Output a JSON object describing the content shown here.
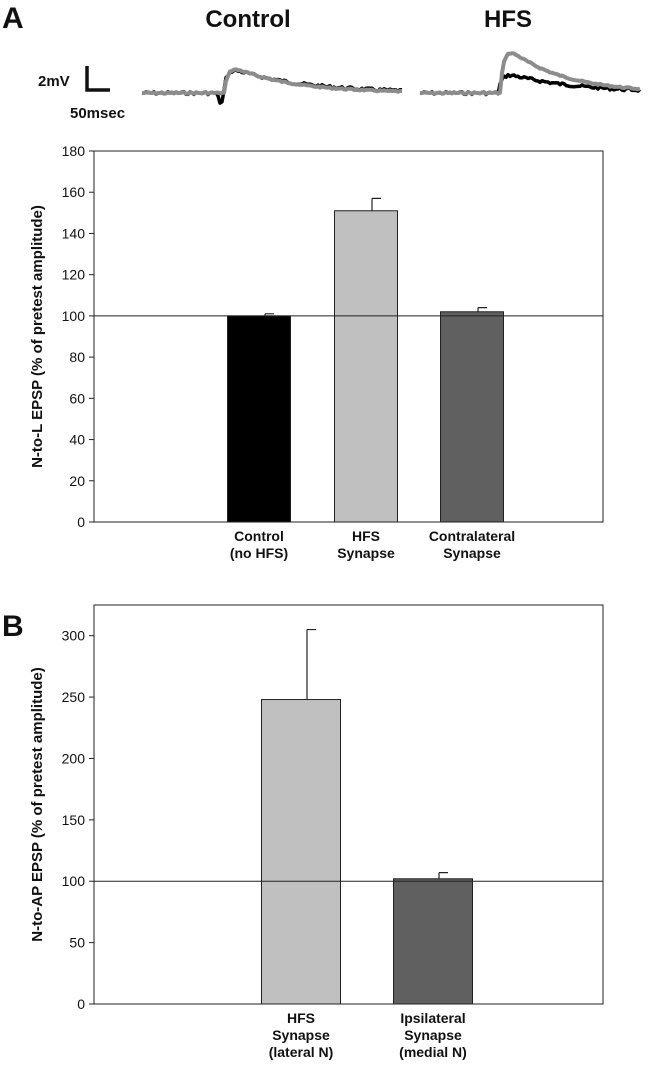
{
  "figure": {
    "panel_a_label": "A",
    "panel_b_label": "B",
    "traces": {
      "control_title": "Control",
      "hfs_title": "HFS",
      "scale_mv": "2mV",
      "scale_ms": "50msec"
    }
  },
  "colors": {
    "control_bar": "#000000",
    "hfs_bar": "#c0c0c0",
    "other_bar": "#606060",
    "trace_pre": "#000000",
    "trace_post": "#8c8c8c"
  },
  "chart_data": [
    {
      "type": "bar",
      "xlabel": "",
      "ylabel": "N-to-L EPSP (% of pretest amplitude)",
      "ylim": [
        0,
        180
      ],
      "yticks": [
        0,
        20,
        40,
        60,
        80,
        100,
        120,
        140,
        160,
        180
      ],
      "reference_line": 100,
      "grid": false,
      "categories": [
        [
          "Control",
          "(no HFS)"
        ],
        [
          "HFS",
          "Synapse"
        ],
        [
          "Contralateral",
          "Synapse"
        ]
      ],
      "values": [
        100,
        151,
        102
      ],
      "errors": [
        1,
        6,
        2
      ]
    },
    {
      "type": "bar",
      "xlabel": "",
      "ylabel": "N-to-AP EPSP (% of pretest amplitude)",
      "ylim": [
        0,
        325
      ],
      "yticks": [
        0,
        50,
        100,
        150,
        200,
        250,
        300
      ],
      "reference_line": 100,
      "grid": false,
      "categories": [
        [
          "HFS",
          "Synapse",
          "(lateral N)"
        ],
        [
          "Ipsilateral",
          "Synapse",
          "(medial N)"
        ]
      ],
      "values": [
        248,
        102
      ],
      "errors": [
        57,
        5
      ]
    }
  ]
}
